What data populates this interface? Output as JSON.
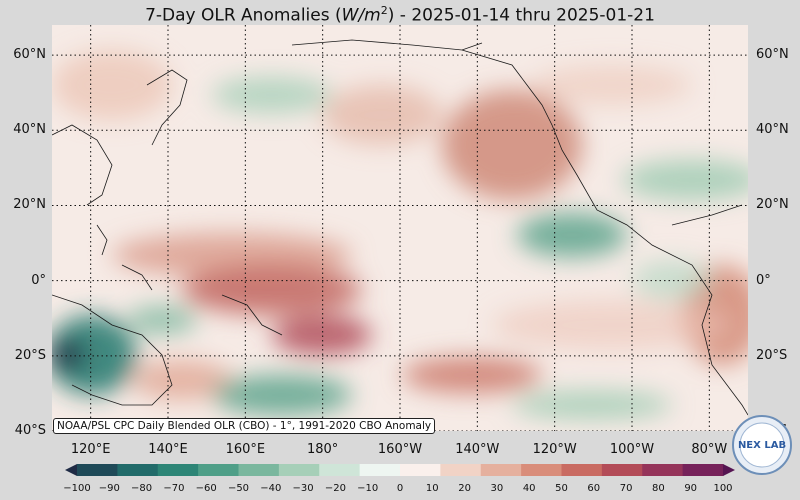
{
  "title": {
    "prefix": "7-Day OLR Anomalies (",
    "unit_base": "W/m",
    "unit_exp": "2",
    "suffix": ") - 2025-01-14 thru 2025-01-21"
  },
  "map": {
    "projection": "equirectangular",
    "lon_range": [
      110,
      290
    ],
    "lat_range": [
      -40,
      68
    ],
    "gridlines": "dotted",
    "lat_labels": [
      {
        "lat": 60,
        "text": "60°N"
      },
      {
        "lat": 40,
        "text": "40°N"
      },
      {
        "lat": 20,
        "text": "20°N"
      },
      {
        "lat": 0,
        "text": "0°"
      },
      {
        "lat": -20,
        "text": "20°S"
      },
      {
        "lat": -40,
        "text": "40°S"
      }
    ],
    "lon_labels": [
      {
        "lon": 120,
        "text": "120°E"
      },
      {
        "lon": 140,
        "text": "140°E"
      },
      {
        "lon": 160,
        "text": "160°E"
      },
      {
        "lon": 180,
        "text": "180°"
      },
      {
        "lon": 200,
        "text": "160°W"
      },
      {
        "lon": 220,
        "text": "140°W"
      },
      {
        "lon": 240,
        "text": "120°W"
      },
      {
        "lon": 260,
        "text": "100°W"
      },
      {
        "lon": 280,
        "text": "80°W"
      }
    ]
  },
  "source_note": "NOAA/PSL CPC Daily Blended OLR (CBO) - 1°, 1991-2020 CBO Anomaly",
  "colorbar": {
    "min": -100,
    "max": 100,
    "ticks": [
      "−100",
      "−90",
      "−80",
      "−70",
      "−60",
      "−50",
      "−40",
      "−30",
      "−20",
      "−10",
      "0",
      "10",
      "20",
      "30",
      "40",
      "50",
      "60",
      "70",
      "80",
      "90",
      "100"
    ],
    "colors": [
      "#1e2a44",
      "#1f4a58",
      "#226b6a",
      "#2d8576",
      "#4f9f88",
      "#7ab79e",
      "#a6cfb8",
      "#cfe5d8",
      "#eef6f1",
      "#faf0ec",
      "#f1d3c6",
      "#e5b09e",
      "#d98d7a",
      "#c96b62",
      "#b34c58",
      "#95345a",
      "#76225a",
      "#561552"
    ]
  },
  "logo": {
    "text": "NEX LAB"
  }
}
